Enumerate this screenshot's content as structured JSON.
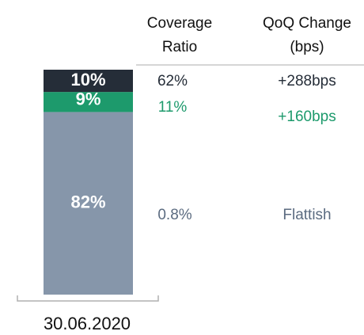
{
  "chart_data": {
    "type": "stacked_bar",
    "categories": [
      "30.06.2020"
    ],
    "series": [
      {
        "name": null,
        "color": "#8696aa",
        "values": [
          82
        ],
        "value_labels": [
          "82%"
        ]
      },
      {
        "name": null,
        "color": "#1d9a6c",
        "values": [
          9
        ],
        "value_labels": [
          "9%"
        ]
      },
      {
        "name": null,
        "color": "#252d38",
        "values": [
          10
        ],
        "value_labels": [
          "10%"
        ]
      }
    ]
  },
  "table": {
    "columns": [
      [
        "Coverage",
        "Ratio"
      ],
      [
        "QoQ Change",
        "(bps)"
      ]
    ],
    "rows": [
      [
        "62%",
        "+288bps"
      ],
      [
        "11%",
        "+160bps"
      ],
      [
        "0.8%",
        "Flattish"
      ]
    ],
    "row_colors": [
      "#252d38",
      "#1d9a6c",
      "#5b6b80"
    ]
  }
}
